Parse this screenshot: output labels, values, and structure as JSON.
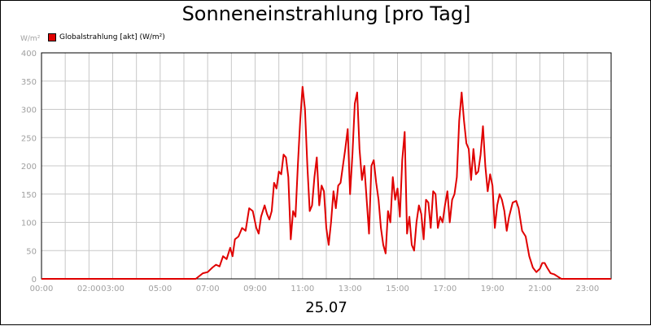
{
  "chart_data": {
    "type": "line",
    "title": "Sonneneinstrahlung [pro Tag]",
    "ylabel": "W/m²",
    "xlabel": "",
    "date_label": "25.07",
    "ylim": [
      0,
      400
    ],
    "yticks": [
      0,
      50,
      100,
      150,
      200,
      250,
      300,
      350,
      400
    ],
    "xlim_hours": [
      0,
      24
    ],
    "xticks": [
      {
        "label": "00:00",
        "hour": 0
      },
      {
        "label": "02:00",
        "hour": 2
      },
      {
        "label": "03:00",
        "hour": 3
      },
      {
        "label": "05:00",
        "hour": 5
      },
      {
        "label": "07:00",
        "hour": 7
      },
      {
        "label": "09:00",
        "hour": 9
      },
      {
        "label": "11:00",
        "hour": 11
      },
      {
        "label": "13:00",
        "hour": 13
      },
      {
        "label": "15:00",
        "hour": 15
      },
      {
        "label": "17:00",
        "hour": 17
      },
      {
        "label": "19:00",
        "hour": 19
      },
      {
        "label": "21:00",
        "hour": 21
      },
      {
        "label": "23:00",
        "hour": 23
      }
    ],
    "grid": true,
    "legend_position": "top-left",
    "series": [
      {
        "name": "Globalstrahlung [akt] (W/m²)",
        "color": "#e00000",
        "points": [
          [
            0.0,
            0
          ],
          [
            6.5,
            0
          ],
          [
            6.65,
            5
          ],
          [
            6.8,
            10
          ],
          [
            7.0,
            12
          ],
          [
            7.2,
            20
          ],
          [
            7.35,
            25
          ],
          [
            7.5,
            22
          ],
          [
            7.65,
            40
          ],
          [
            7.8,
            35
          ],
          [
            7.95,
            55
          ],
          [
            8.05,
            40
          ],
          [
            8.15,
            70
          ],
          [
            8.3,
            75
          ],
          [
            8.45,
            90
          ],
          [
            8.6,
            85
          ],
          [
            8.75,
            125
          ],
          [
            8.9,
            120
          ],
          [
            9.05,
            90
          ],
          [
            9.15,
            80
          ],
          [
            9.25,
            110
          ],
          [
            9.4,
            130
          ],
          [
            9.5,
            115
          ],
          [
            9.6,
            105
          ],
          [
            9.7,
            120
          ],
          [
            9.8,
            170
          ],
          [
            9.9,
            160
          ],
          [
            10.0,
            190
          ],
          [
            10.1,
            185
          ],
          [
            10.2,
            220
          ],
          [
            10.3,
            215
          ],
          [
            10.4,
            180
          ],
          [
            10.5,
            70
          ],
          [
            10.6,
            120
          ],
          [
            10.7,
            110
          ],
          [
            10.8,
            200
          ],
          [
            10.9,
            280
          ],
          [
            11.0,
            340
          ],
          [
            11.1,
            300
          ],
          [
            11.2,
            200
          ],
          [
            11.3,
            120
          ],
          [
            11.4,
            130
          ],
          [
            11.5,
            180
          ],
          [
            11.6,
            215
          ],
          [
            11.7,
            130
          ],
          [
            11.8,
            165
          ],
          [
            11.9,
            155
          ],
          [
            12.0,
            90
          ],
          [
            12.1,
            60
          ],
          [
            12.2,
            100
          ],
          [
            12.3,
            155
          ],
          [
            12.4,
            125
          ],
          [
            12.5,
            165
          ],
          [
            12.6,
            170
          ],
          [
            12.7,
            200
          ],
          [
            12.8,
            230
          ],
          [
            12.9,
            265
          ],
          [
            13.0,
            150
          ],
          [
            13.1,
            220
          ],
          [
            13.2,
            310
          ],
          [
            13.3,
            330
          ],
          [
            13.4,
            230
          ],
          [
            13.5,
            175
          ],
          [
            13.6,
            200
          ],
          [
            13.7,
            140
          ],
          [
            13.8,
            80
          ],
          [
            13.9,
            200
          ],
          [
            14.0,
            210
          ],
          [
            14.1,
            170
          ],
          [
            14.2,
            140
          ],
          [
            14.3,
            90
          ],
          [
            14.4,
            60
          ],
          [
            14.5,
            45
          ],
          [
            14.6,
            120
          ],
          [
            14.7,
            100
          ],
          [
            14.8,
            180
          ],
          [
            14.9,
            140
          ],
          [
            15.0,
            160
          ],
          [
            15.1,
            110
          ],
          [
            15.2,
            210
          ],
          [
            15.3,
            260
          ],
          [
            15.4,
            80
          ],
          [
            15.5,
            110
          ],
          [
            15.6,
            60
          ],
          [
            15.7,
            50
          ],
          [
            15.8,
            100
          ],
          [
            15.9,
            130
          ],
          [
            16.0,
            115
          ],
          [
            16.1,
            70
          ],
          [
            16.2,
            140
          ],
          [
            16.3,
            135
          ],
          [
            16.4,
            90
          ],
          [
            16.5,
            155
          ],
          [
            16.6,
            150
          ],
          [
            16.7,
            90
          ],
          [
            16.8,
            110
          ],
          [
            16.9,
            100
          ],
          [
            17.0,
            130
          ],
          [
            17.1,
            155
          ],
          [
            17.2,
            100
          ],
          [
            17.3,
            140
          ],
          [
            17.4,
            150
          ],
          [
            17.5,
            180
          ],
          [
            17.6,
            280
          ],
          [
            17.7,
            330
          ],
          [
            17.8,
            280
          ],
          [
            17.9,
            240
          ],
          [
            18.0,
            230
          ],
          [
            18.1,
            175
          ],
          [
            18.2,
            230
          ],
          [
            18.3,
            185
          ],
          [
            18.4,
            190
          ],
          [
            18.5,
            220
          ],
          [
            18.6,
            270
          ],
          [
            18.7,
            200
          ],
          [
            18.8,
            155
          ],
          [
            18.9,
            185
          ],
          [
            19.0,
            165
          ],
          [
            19.1,
            90
          ],
          [
            19.2,
            130
          ],
          [
            19.3,
            150
          ],
          [
            19.4,
            140
          ],
          [
            19.5,
            120
          ],
          [
            19.6,
            85
          ],
          [
            19.7,
            110
          ],
          [
            19.85,
            135
          ],
          [
            20.0,
            138
          ],
          [
            20.1,
            125
          ],
          [
            20.25,
            85
          ],
          [
            20.4,
            75
          ],
          [
            20.55,
            40
          ],
          [
            20.7,
            20
          ],
          [
            20.85,
            12
          ],
          [
            21.0,
            18
          ],
          [
            21.1,
            28
          ],
          [
            21.2,
            28
          ],
          [
            21.3,
            20
          ],
          [
            21.45,
            10
          ],
          [
            21.6,
            8
          ],
          [
            21.75,
            4
          ],
          [
            21.9,
            0
          ],
          [
            24.0,
            0
          ]
        ]
      }
    ]
  }
}
